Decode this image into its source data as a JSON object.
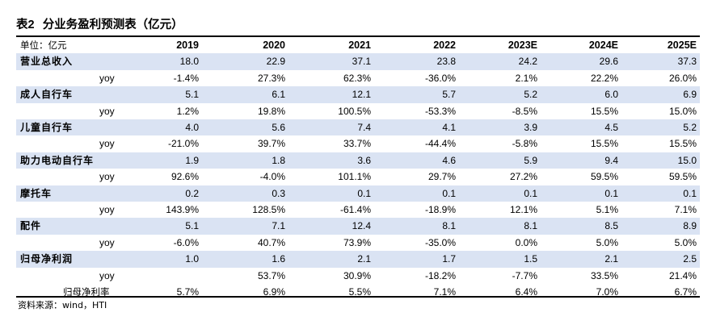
{
  "title": {
    "label": "表2",
    "text": "分业务盈利预测表（亿元）"
  },
  "table": {
    "unit_label": "单位：亿元",
    "years": [
      "2019",
      "2020",
      "2021",
      "2022",
      "2023E",
      "2024E",
      "2025E"
    ],
    "rows": [
      {
        "kind": "seg",
        "label": "营业总收入",
        "values": [
          "18.0",
          "22.9",
          "37.1",
          "23.8",
          "24.2",
          "29.6",
          "37.3"
        ]
      },
      {
        "kind": "yoy",
        "label": "yoy",
        "values": [
          "-1.4%",
          "27.3%",
          "62.3%",
          "-36.0%",
          "2.1%",
          "22.2%",
          "26.0%"
        ]
      },
      {
        "kind": "seg",
        "label": "成人自行车",
        "values": [
          "5.1",
          "6.1",
          "12.1",
          "5.7",
          "5.2",
          "6.0",
          "6.9"
        ]
      },
      {
        "kind": "yoy",
        "label": "yoy",
        "values": [
          "1.2%",
          "19.8%",
          "100.5%",
          "-53.3%",
          "-8.5%",
          "15.5%",
          "15.0%"
        ]
      },
      {
        "kind": "seg",
        "label": "儿童自行车",
        "values": [
          "4.0",
          "5.6",
          "7.4",
          "4.1",
          "3.9",
          "4.5",
          "5.2"
        ]
      },
      {
        "kind": "yoy",
        "label": "yoy",
        "values": [
          "-21.0%",
          "39.7%",
          "33.7%",
          "-44.4%",
          "-5.8%",
          "15.5%",
          "15.5%"
        ]
      },
      {
        "kind": "seg",
        "label": "助力电动自行车",
        "values": [
          "1.9",
          "1.8",
          "3.6",
          "4.6",
          "5.9",
          "9.4",
          "15.0"
        ]
      },
      {
        "kind": "yoy",
        "label": "yoy",
        "values": [
          "92.6%",
          "-4.0%",
          "101.1%",
          "29.7%",
          "27.2%",
          "59.5%",
          "59.5%"
        ]
      },
      {
        "kind": "seg",
        "label": "摩托车",
        "values": [
          "0.2",
          "0.3",
          "0.1",
          "0.1",
          "0.1",
          "0.1",
          "0.1"
        ]
      },
      {
        "kind": "yoy",
        "label": "yoy",
        "values": [
          "143.9%",
          "128.5%",
          "-61.4%",
          "-18.9%",
          "12.1%",
          "5.1%",
          "7.1%"
        ]
      },
      {
        "kind": "seg",
        "label": "配件",
        "values": [
          "5.1",
          "7.1",
          "12.4",
          "8.1",
          "8.1",
          "8.5",
          "8.9"
        ]
      },
      {
        "kind": "yoy",
        "label": "yoy",
        "values": [
          "-6.0%",
          "40.7%",
          "73.9%",
          "-35.0%",
          "0.0%",
          "5.0%",
          "5.0%"
        ]
      },
      {
        "kind": "seg",
        "label": "归母净利润",
        "values": [
          "1.0",
          "1.6",
          "2.1",
          "1.7",
          "1.5",
          "2.1",
          "2.5"
        ]
      },
      {
        "kind": "yoy",
        "label": "yoy",
        "values": [
          "",
          "53.7%",
          "30.9%",
          "-18.2%",
          "-7.7%",
          "33.5%",
          "21.4%"
        ]
      },
      {
        "kind": "margin",
        "label": "归母净利率",
        "values": [
          "5.7%",
          "6.9%",
          "5.5%",
          "7.1%",
          "6.4%",
          "7.0%",
          "6.7%"
        ]
      }
    ]
  },
  "source": "资料来源：wind，HTI",
  "colors": {
    "segment_row_bg": "#dae3f3",
    "rule": "#000000"
  }
}
